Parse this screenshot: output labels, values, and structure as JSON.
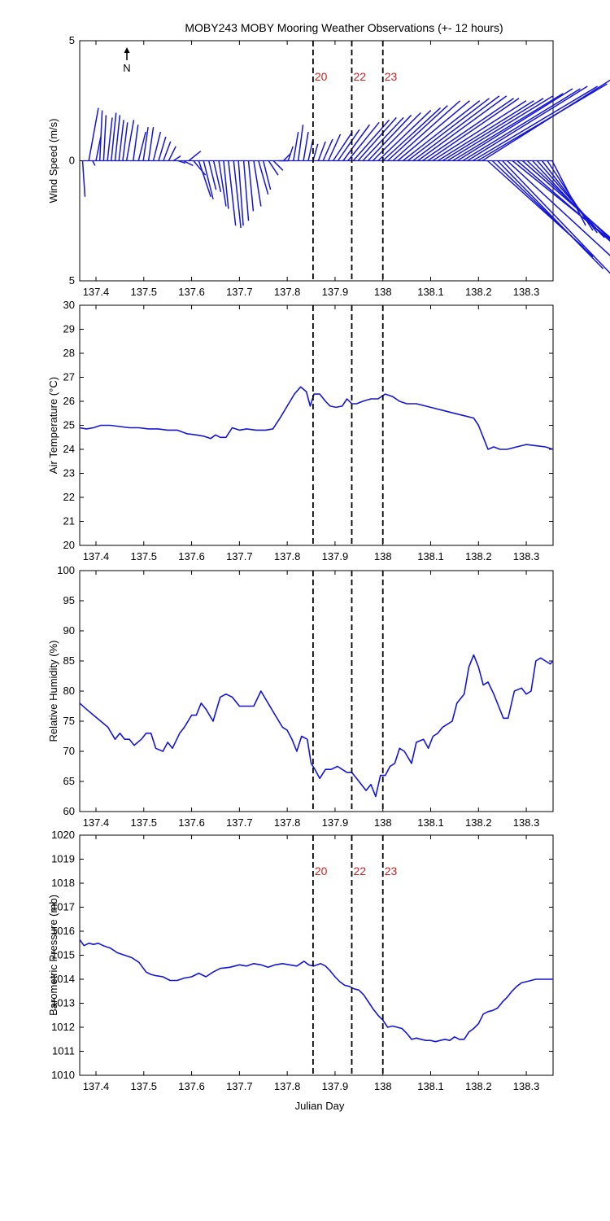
{
  "figure_title": "MOBY243 MOBY Mooring Weather Observations (+- 12 hours)",
  "north_label": "N",
  "xlabel": "Julian Day",
  "xlim": [
    137.366,
    138.356
  ],
  "xticks": [
    137.4,
    137.5,
    137.6,
    137.7,
    137.8,
    137.9,
    138,
    138.1,
    138.2,
    138.3
  ],
  "xtick_labels": [
    "137.4",
    "137.5",
    "137.6",
    "137.7",
    "137.8",
    "137.9",
    "138",
    "138.1",
    "138.2",
    "138.3"
  ],
  "markers": [
    {
      "x": 137.854,
      "label": "20"
    },
    {
      "x": 137.935,
      "label": "22"
    },
    {
      "x": 138.0,
      "label": "23"
    }
  ],
  "colors": {
    "series": "#1515d8",
    "marker_label": "#cc2222",
    "axis": "#000000"
  },
  "chart_data": [
    {
      "type": "line",
      "subtype": "wind-stick",
      "ylabel": "Wind Speed (m/s)",
      "ylim": [
        -5,
        5
      ],
      "yticks": [
        -5,
        0,
        5
      ],
      "ytick_labels": [
        "5",
        "0",
        "5"
      ],
      "show_markers": true,
      "show_marker_labels": true,
      "series": [
        {
          "x": [
            137.372,
            137.385,
            137.393,
            137.4,
            137.408,
            137.416,
            137.424,
            137.432,
            137.44,
            137.448,
            137.456,
            137.464,
            137.478,
            137.489,
            137.499,
            137.51,
            137.52,
            137.531,
            137.541,
            137.552,
            137.562,
            137.572,
            137.583,
            137.594,
            137.604,
            137.615,
            137.625,
            137.636,
            137.646,
            137.657,
            137.667,
            137.677,
            137.688,
            137.698,
            137.709,
            137.719,
            137.73,
            137.74,
            137.75,
            137.761,
            137.771,
            137.782,
            137.792,
            137.802,
            137.813,
            137.823,
            137.834,
            137.844,
            137.854,
            137.865,
            137.875,
            137.886,
            137.896,
            137.906,
            137.917,
            137.927,
            137.938,
            137.948,
            137.958,
            137.969,
            137.979,
            137.99,
            138.0,
            138.01,
            138.021,
            138.031,
            138.042,
            138.052,
            138.063,
            138.073,
            138.083,
            138.094,
            138.104,
            138.115,
            138.125,
            138.135,
            138.146,
            138.156,
            138.167,
            138.177,
            138.188,
            138.198,
            138.208,
            138.219,
            138.229,
            138.24,
            138.25,
            138.26,
            138.271,
            138.281,
            138.292,
            138.302,
            138.313,
            138.323,
            138.333,
            138.344,
            138.354
          ],
          "u": [
            0.1,
            0.4,
            0.1,
            0.2,
            0.1,
            0.1,
            0.2,
            0.2,
            0.2,
            0.2,
            0.2,
            0.3,
            0.2,
            0.3,
            0.2,
            0.2,
            0.3,
            0.3,
            0.3,
            0.3,
            0.3,
            0.3,
            0.4,
            0.5,
            0.5,
            0.5,
            0.4,
            0.3,
            0.3,
            0.3,
            0.2,
            0.3,
            0.3,
            0.2,
            0.2,
            0.2,
            0.3,
            0.4,
            0.3,
            0.4,
            0.4,
            0.4,
            0.3,
            0.2,
            0.2,
            0.2,
            0.2,
            0.2,
            0.2,
            0.3,
            0.4,
            0.5,
            0.8,
            0.9,
            1.1,
            1.3,
            1.5,
            1.6,
            1.7,
            1.8,
            2.0,
            2.2,
            2.4,
            2.5,
            2.8,
            3.0,
            3.2,
            3.4,
            3.6,
            3.7,
            3.8,
            3.8,
            3.9,
            4.0,
            4.2,
            4.4,
            4.6,
            4.8,
            4.9,
            5.0,
            5.2,
            5.4,
            5.4,
            4.0,
            4.2,
            4.4,
            4.7,
            5.0,
            5.2,
            4.4,
            4.0,
            3.5,
            3.0,
            2.7,
            2.3,
            1.9,
            1.4
          ],
          "v": [
            -1.5,
            2.2,
            -0.2,
            1.0,
            2.1,
            1.9,
            1.8,
            2.0,
            1.9,
            1.7,
            1.6,
            1.7,
            1.5,
            1.2,
            1.4,
            1.4,
            1.2,
            1.0,
            0.8,
            0.6,
            0.2,
            -0.1,
            -0.2,
            0.4,
            -0.6,
            -1.5,
            -1.6,
            -1.2,
            -1.3,
            -1.9,
            -2.0,
            -2.7,
            -2.8,
            -2.7,
            -2.5,
            -2.1,
            -1.9,
            -1.4,
            -1.2,
            -0.6,
            -0.4,
            0.0,
            0.3,
            0.6,
            1.2,
            1.5,
            1.2,
            0.9,
            0.7,
            0.8,
            0.9,
            1.1,
            1.2,
            1.3,
            1.5,
            1.6,
            1.7,
            1.8,
            1.8,
            1.9,
            2.0,
            2.1,
            2.2,
            2.3,
            2.5,
            2.5,
            2.5,
            2.6,
            2.7,
            2.7,
            2.6,
            2.6,
            2.5,
            2.5,
            2.6,
            2.7,
            2.8,
            3.0,
            3.0,
            3.1,
            3.1,
            3.2,
            3.4,
            -3.6,
            -4.0,
            -4.5,
            -4.9,
            -4.6,
            -4.2,
            -3.8,
            -3.5,
            -3.3,
            -3.2,
            -3.1,
            -3.0,
            -2.9,
            -2.7
          ]
        }
      ]
    },
    {
      "type": "line",
      "ylabel": "Air Temperature (°C)",
      "ylim": [
        20,
        30
      ],
      "yticks": [
        20,
        21,
        22,
        23,
        24,
        25,
        26,
        27,
        28,
        29,
        30
      ],
      "ytick_labels": [
        "20",
        "21",
        "22",
        "23",
        "24",
        "25",
        "26",
        "27",
        "28",
        "29",
        "30"
      ],
      "show_markers": true,
      "show_marker_labels": false,
      "series": [
        {
          "x": [
            137.366,
            137.38,
            137.395,
            137.41,
            137.43,
            137.45,
            137.47,
            137.49,
            137.51,
            137.53,
            137.55,
            137.57,
            137.59,
            137.61,
            137.625,
            137.64,
            137.65,
            137.66,
            137.672,
            137.685,
            137.7,
            137.715,
            137.735,
            137.755,
            137.77,
            137.785,
            137.8,
            137.815,
            137.828,
            137.84,
            137.848,
            137.856,
            137.868,
            137.88,
            137.89,
            137.902,
            137.915,
            137.925,
            137.935,
            137.945,
            137.958,
            137.975,
            137.99,
            138.005,
            138.02,
            138.035,
            138.05,
            138.07,
            138.09,
            138.11,
            138.13,
            138.15,
            138.17,
            138.19,
            138.2,
            138.21,
            138.22,
            138.232,
            138.245,
            138.26,
            138.28,
            138.3,
            138.32,
            138.34,
            138.356
          ],
          "y": [
            24.9,
            24.85,
            24.9,
            25.0,
            25.0,
            24.95,
            24.9,
            24.9,
            24.85,
            24.85,
            24.8,
            24.8,
            24.65,
            24.6,
            24.55,
            24.45,
            24.6,
            24.5,
            24.5,
            24.9,
            24.8,
            24.85,
            24.8,
            24.8,
            24.85,
            25.3,
            25.8,
            26.3,
            26.6,
            26.4,
            25.8,
            26.3,
            26.3,
            26.0,
            25.8,
            25.75,
            25.8,
            26.1,
            25.9,
            25.9,
            26.0,
            26.1,
            26.1,
            26.3,
            26.2,
            26.0,
            25.9,
            25.9,
            25.8,
            25.7,
            25.6,
            25.5,
            25.4,
            25.3,
            25.0,
            24.5,
            24.0,
            24.1,
            24.0,
            24.0,
            24.1,
            24.2,
            24.15,
            24.1,
            24.0
          ]
        }
      ]
    },
    {
      "type": "line",
      "ylabel": "Relative Humidity (%)",
      "ylim": [
        60,
        100
      ],
      "yticks": [
        60,
        65,
        70,
        75,
        80,
        85,
        90,
        95,
        100
      ],
      "ytick_labels": [
        "60",
        "65",
        "70",
        "75",
        "80",
        "85",
        "90",
        "95",
        "100"
      ],
      "show_markers": true,
      "show_marker_labels": false,
      "series": [
        {
          "x": [
            137.366,
            137.38,
            137.395,
            137.41,
            137.425,
            137.44,
            137.45,
            137.46,
            137.47,
            137.48,
            137.495,
            137.505,
            137.515,
            137.525,
            137.54,
            137.55,
            137.56,
            137.575,
            137.585,
            137.6,
            137.61,
            137.62,
            137.63,
            137.645,
            137.66,
            137.672,
            137.685,
            137.7,
            137.715,
            137.73,
            137.745,
            137.76,
            137.775,
            137.79,
            137.8,
            137.81,
            137.82,
            137.83,
            137.842,
            137.85,
            137.858,
            137.868,
            137.88,
            137.892,
            137.905,
            137.915,
            137.925,
            137.935,
            137.945,
            137.955,
            137.965,
            137.975,
            137.985,
            137.995,
            138.005,
            138.015,
            138.025,
            138.035,
            138.045,
            138.06,
            138.07,
            138.085,
            138.095,
            138.105,
            138.115,
            138.125,
            138.135,
            138.145,
            138.155,
            138.17,
            138.18,
            138.19,
            138.2,
            138.21,
            138.22,
            138.232,
            138.242,
            138.252,
            138.262,
            138.275,
            138.29,
            138.3,
            138.31,
            138.32,
            138.33,
            138.34,
            138.35,
            138.356
          ],
          "y": [
            78,
            77,
            76,
            75,
            74,
            72,
            73,
            72,
            72,
            71,
            72,
            73,
            73,
            70.5,
            70,
            71.5,
            70.5,
            73,
            74,
            76,
            76,
            78,
            77,
            75,
            79,
            79.5,
            79,
            77.5,
            77.5,
            77.5,
            80,
            78,
            76,
            74,
            73.5,
            72,
            70,
            72.5,
            72,
            68,
            67,
            65.5,
            67,
            67,
            67.5,
            67,
            66.5,
            66.5,
            65.5,
            64.5,
            63.5,
            64.5,
            62.5,
            66,
            66,
            67.5,
            68,
            70.5,
            70,
            68,
            71.5,
            72,
            70.5,
            72.5,
            73,
            74,
            74.5,
            75,
            78,
            79.5,
            84,
            86,
            84,
            81,
            81.5,
            79.5,
            77.5,
            75.5,
            75.5,
            80,
            80.5,
            79.5,
            80,
            85,
            85.5,
            85,
            84.5,
            85
          ]
        }
      ]
    },
    {
      "type": "line",
      "ylabel": "Barometric Pressure (mb)",
      "ylim": [
        1010,
        1020
      ],
      "yticks": [
        1010,
        1011,
        1012,
        1013,
        1014,
        1015,
        1016,
        1017,
        1018,
        1019,
        1020
      ],
      "ytick_labels": [
        "1010",
        "1011",
        "1012",
        "1013",
        "1014",
        "1015",
        "1016",
        "1017",
        "1018",
        "1019",
        "1020"
      ],
      "show_markers": true,
      "show_marker_labels": true,
      "series": [
        {
          "x": [
            137.366,
            137.375,
            137.385,
            137.395,
            137.405,
            137.415,
            137.43,
            137.445,
            137.46,
            137.475,
            137.49,
            137.505,
            137.515,
            137.525,
            137.54,
            137.555,
            137.57,
            137.585,
            137.6,
            137.615,
            137.63,
            137.645,
            137.66,
            137.68,
            137.7,
            137.715,
            137.73,
            137.745,
            137.76,
            137.775,
            137.79,
            137.805,
            137.82,
            137.835,
            137.845,
            137.855,
            137.87,
            137.88,
            137.89,
            137.9,
            137.91,
            137.92,
            137.93,
            137.94,
            137.95,
            137.96,
            137.97,
            137.98,
            137.99,
            138.0,
            138.01,
            138.02,
            138.03,
            138.04,
            138.05,
            138.06,
            138.07,
            138.08,
            138.09,
            138.1,
            138.11,
            138.12,
            138.13,
            138.14,
            138.15,
            138.16,
            138.17,
            138.18,
            138.19,
            138.2,
            138.21,
            138.22,
            138.23,
            138.24,
            138.25,
            138.26,
            138.27,
            138.28,
            138.29,
            138.3,
            138.31,
            138.32,
            138.33,
            138.34,
            138.356
          ],
          "y": [
            1015.65,
            1015.4,
            1015.5,
            1015.45,
            1015.5,
            1015.4,
            1015.3,
            1015.1,
            1015,
            1014.9,
            1014.7,
            1014.3,
            1014.2,
            1014.15,
            1014.1,
            1013.95,
            1013.95,
            1014.05,
            1014.1,
            1014.25,
            1014.1,
            1014.3,
            1014.45,
            1014.5,
            1014.6,
            1014.55,
            1014.65,
            1014.6,
            1014.5,
            1014.6,
            1014.65,
            1014.6,
            1014.55,
            1014.75,
            1014.6,
            1014.55,
            1014.65,
            1014.55,
            1014.35,
            1014.1,
            1013.9,
            1013.75,
            1013.7,
            1013.6,
            1013.55,
            1013.35,
            1013.05,
            1012.75,
            1012.5,
            1012.3,
            1012,
            1012.05,
            1012,
            1011.95,
            1011.75,
            1011.5,
            1011.55,
            1011.5,
            1011.45,
            1011.45,
            1011.4,
            1011.45,
            1011.5,
            1011.45,
            1011.6,
            1011.5,
            1011.5,
            1011.8,
            1011.95,
            1012.15,
            1012.55,
            1012.65,
            1012.7,
            1012.8,
            1013.05,
            1013.25,
            1013.5,
            1013.7,
            1013.85,
            1013.9,
            1013.95,
            1014,
            1014,
            1014,
            1014
          ]
        }
      ]
    }
  ]
}
